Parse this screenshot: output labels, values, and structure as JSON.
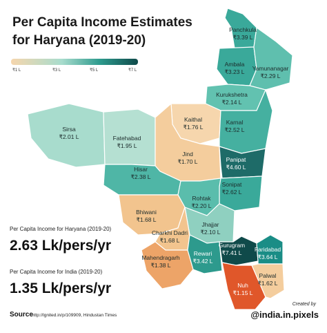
{
  "header": {
    "title_line1": "Per Capita Income Estimates",
    "title_line2": "for Haryana (2019-20)"
  },
  "legend": {
    "labels": [
      "₹1 L",
      "₹3 L",
      "₹5 L",
      "₹7 L"
    ]
  },
  "districts": [
    {
      "name": "Panchkula",
      "value_label": "₹3.39 L",
      "color": "#3aa99a"
    },
    {
      "name": "Ambala",
      "value_label": "₹3.23 L",
      "color": "#3aa99a"
    },
    {
      "name": "Yamunanagar",
      "value_label": "₹2.29 L",
      "color": "#5fbfae"
    },
    {
      "name": "Kurukshetra",
      "value_label": "₹2.14 L",
      "color": "#62c2b0"
    },
    {
      "name": "Kaithal",
      "value_label": "₹1.76 L",
      "color": "#f6d6ad"
    },
    {
      "name": "Karnal",
      "value_label": "₹2.52 L",
      "color": "#45b0a0"
    },
    {
      "name": "Sirsa",
      "value_label": "₹2.01 L",
      "color": "#a8dccd"
    },
    {
      "name": "Fatehabad",
      "value_label": "₹1.95 L",
      "color": "#b5e0d2"
    },
    {
      "name": "Jind",
      "value_label": "₹1.70 L",
      "color": "#f4cd9d"
    },
    {
      "name": "Panipat",
      "value_label": "₹4.60 L",
      "color": "#1e6b68"
    },
    {
      "name": "Hisar",
      "value_label": "₹2.38 L",
      "color": "#4fb6a6"
    },
    {
      "name": "Sonipat",
      "value_label": "₹2.62 L",
      "color": "#3aa99a"
    },
    {
      "name": "Rohtak",
      "value_label": "₹2.20 L",
      "color": "#5abdac"
    },
    {
      "name": "Bhiwani",
      "value_label": "₹1.68 L",
      "color": "#f2c48e"
    },
    {
      "name": "Jhajjar",
      "value_label": "₹2.10 L",
      "color": "#8fd0c0"
    },
    {
      "name": "Charkhi Dadri",
      "value_label": "₹1.68 L",
      "color": "#f2c48e"
    },
    {
      "name": "Mahendragarh",
      "value_label": "₹1.38 L",
      "color": "#eda468"
    },
    {
      "name": "Rewari",
      "value_label": "₹3.42 L",
      "color": "#2d9a8d"
    },
    {
      "name": "Gurugram",
      "value_label": "₹7.41 L",
      "color": "#0f4a4a"
    },
    {
      "name": "Faridabad",
      "value_label": "₹3.64 L",
      "color": "#1a8d86"
    },
    {
      "name": "Nuh",
      "value_label": "₹1.15 L",
      "color": "#e0572a"
    },
    {
      "name": "Palwal",
      "value_label": "₹1.62 L",
      "color": "#f4cd9d"
    }
  ],
  "stats": {
    "haryana_label": "Per Capita Income for Haryana (2019-20)",
    "haryana_value": "2.63 Lk/pers/yr",
    "india_label": "Per Capita Income for India (2019-20)",
    "india_value": "1.35 Lk/pers/yr"
  },
  "footer": {
    "source_label": "Source",
    "source_text": "http://lgnited.in/p/109909, Hindustan Times",
    "created_by": "Created by",
    "handle": "@india.in.pixels"
  }
}
